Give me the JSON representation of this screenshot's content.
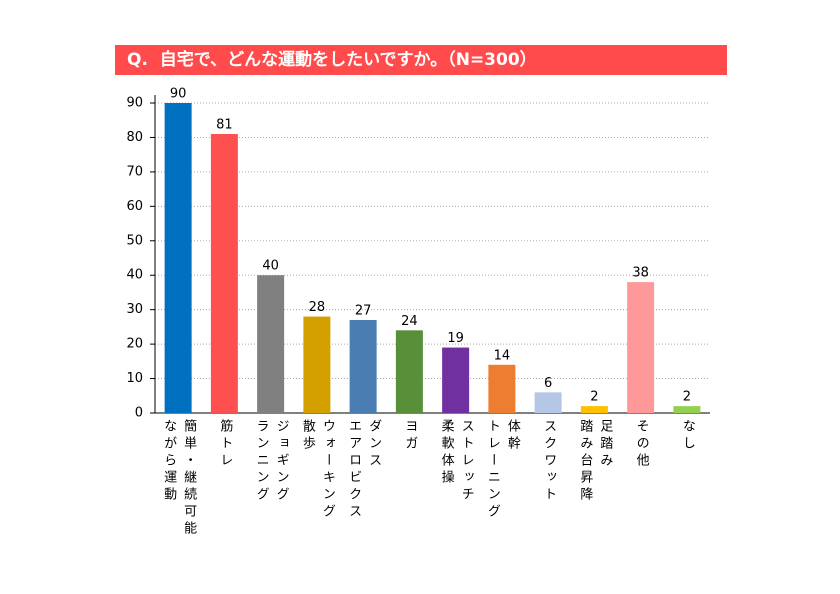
{
  "chart_data": {
    "type": "bar",
    "title": "Q.  自宅で、どんな運動をしたいですか。（N=300）",
    "categories": [
      "簡単・継続可能\nながら運動",
      "筋トレ",
      "ジョギング\nランニング",
      "ウォーキング\n散歩",
      "ダンス\nエアロビクス",
      "ヨガ",
      "ストレッチ\n柔軟体操",
      "体幹\nトレーニング",
      "スクワット",
      "足踏み\n踏み台昇降",
      "その他",
      "なし"
    ],
    "values": [
      90,
      81,
      40,
      28,
      27,
      24,
      19,
      14,
      6,
      2,
      38,
      2
    ],
    "colors": [
      "#0070c0",
      "#ff5050",
      "#808080",
      "#d4a000",
      "#4a7eb3",
      "#5a8f3a",
      "#7030a0",
      "#ed7d31",
      "#b4c7e7",
      "#ffc000",
      "#ff9999",
      "#92d050"
    ],
    "ylim": [
      0,
      90
    ],
    "yticks": [
      0,
      10,
      20,
      30,
      40,
      50,
      60,
      70,
      80,
      90
    ],
    "grid": true
  }
}
